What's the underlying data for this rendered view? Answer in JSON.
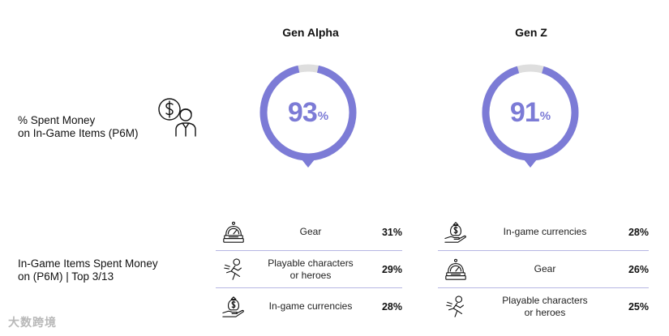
{
  "chart_data": [
    {
      "type": "pie",
      "title": "% Spent Money on In-Game Items (P6M)",
      "categories": [
        "Gen Alpha",
        "Gen Z"
      ],
      "values": [
        93,
        91
      ],
      "unit": "%"
    },
    {
      "type": "table",
      "title": "In-Game Items Spent Money on (P6M) | Top 3/13",
      "series": [
        {
          "name": "Gen Alpha",
          "categories": [
            "Gear",
            "Playable characters or heroes",
            "In-game currencies"
          ],
          "values": [
            31,
            29,
            28
          ]
        },
        {
          "name": "Gen Z",
          "categories": [
            "In-game currencies",
            "Gear",
            "Playable characters or heroes"
          ],
          "values": [
            28,
            26,
            25
          ]
        }
      ]
    }
  ],
  "labels": {
    "row1_line1": "% Spent Money",
    "row1_line2": "on In-Game Items (P6M)",
    "row2_line1": "In-Game Items Spent Money",
    "row2_line2": "on (P6M) | Top 3/13"
  },
  "headers": {
    "alpha": "Gen Alpha",
    "z": "Gen Z"
  },
  "donuts": [
    {
      "num": "93",
      "pct": "%"
    },
    {
      "num": "91",
      "pct": "%"
    }
  ],
  "tables": {
    "alpha": [
      {
        "icon": "gear-gauge-icon",
        "line1": "Gear",
        "line2": "",
        "value": "31%"
      },
      {
        "icon": "running-hero-icon",
        "line1": "Playable characters",
        "line2": "or heroes",
        "value": "29%"
      },
      {
        "icon": "money-bag-hand-icon",
        "line1": "In-game currencies",
        "line2": "",
        "value": "28%"
      }
    ],
    "z": [
      {
        "icon": "money-bag-hand-icon",
        "line1": "In-game currencies",
        "line2": "",
        "value": "28%"
      },
      {
        "icon": "gear-gauge-icon",
        "line1": "Gear",
        "line2": "",
        "value": "26%"
      },
      {
        "icon": "running-hero-icon",
        "line1": "Playable characters",
        "line2": "or heroes",
        "value": "25%"
      }
    ]
  },
  "colors": {
    "accent": "#7c7bd6",
    "track": "#dedede",
    "divider": "#b6b6e3"
  },
  "watermark": "大数跨境"
}
